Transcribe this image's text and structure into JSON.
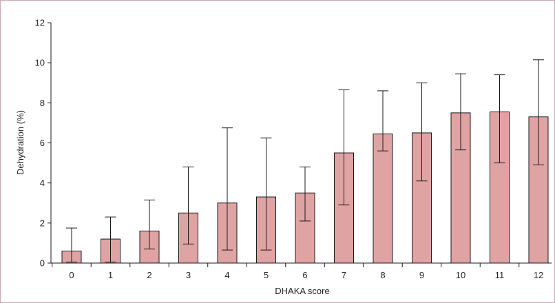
{
  "chart_data": {
    "type": "bar",
    "title": "",
    "xlabel": "DHAKA score",
    "ylabel": "Dehydration (%)",
    "categories": [
      "0",
      "1",
      "2",
      "3",
      "4",
      "5",
      "6",
      "7",
      "8",
      "9",
      "10",
      "11",
      "12"
    ],
    "values": [
      0.6,
      1.2,
      1.6,
      2.5,
      3.0,
      3.3,
      3.5,
      5.5,
      6.45,
      6.5,
      7.5,
      7.55,
      7.3
    ],
    "error_low": [
      0.05,
      0.05,
      0.7,
      0.95,
      0.65,
      0.65,
      2.1,
      2.9,
      5.6,
      4.1,
      5.65,
      5.0,
      4.9
    ],
    "error_high": [
      1.75,
      2.3,
      3.15,
      4.8,
      6.75,
      6.25,
      4.8,
      8.65,
      8.6,
      9.0,
      9.45,
      9.4,
      10.15
    ],
    "ylim": [
      0,
      12
    ],
    "yticks": [
      "0",
      "2",
      "4",
      "6",
      "8",
      "10",
      "12"
    ],
    "grid": false,
    "colors": {
      "bar_fill": "#e0a3a3",
      "bar_stroke": "#1a1a1a",
      "axis": "#1a1a1a",
      "frame": "#c9a9b6"
    }
  }
}
